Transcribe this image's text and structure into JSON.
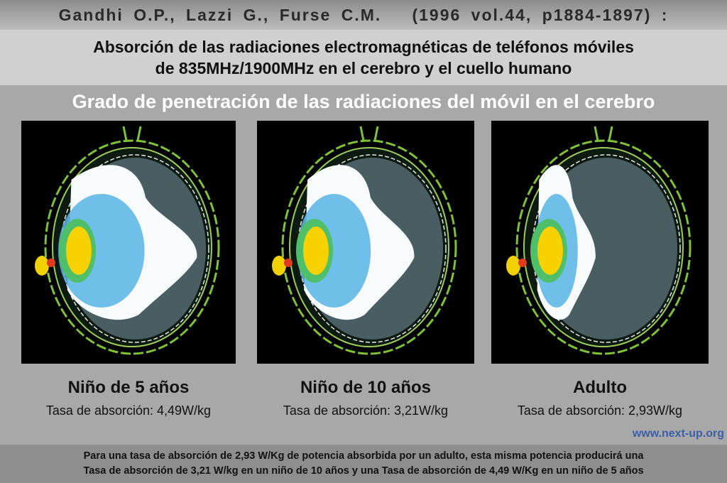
{
  "header": {
    "citation": "Gandhi O.P., Lazzi G., Furse C.M.   (1996 vol.44, p1884-1897) :"
  },
  "title": {
    "lines": [
      "Absorción de las radiaciones electromagnéticas de teléfonos móviles",
      "de 835MHz/1900MHz en el cerebro y el cuello humano"
    ]
  },
  "subtitle": "Grado de penetración de las radiaciones del móvil en el cerebro",
  "panels": [
    {
      "label": "Niño de 5 años",
      "rate": "Tasa de absorción: 4,49W/kg"
    },
    {
      "label": "Niño de 10 años",
      "rate": "Tasa de absorción: 3,21W/kg"
    },
    {
      "label": "Adulto",
      "rate": "Tasa de absorción: 2,93W/kg"
    }
  ],
  "source": "www.next-up.org",
  "footer": {
    "lines": [
      "Para una tasa de absorción de 2,93 W/Kg de potencia absorbida por un adulto, esta misma potencia producirá una",
      "Tasa de absorción de 3,21 W/kg en un niño de 10 años y una Tasa de absorción de 4,49 W/Kg en un niño de 5 años"
    ]
  }
}
